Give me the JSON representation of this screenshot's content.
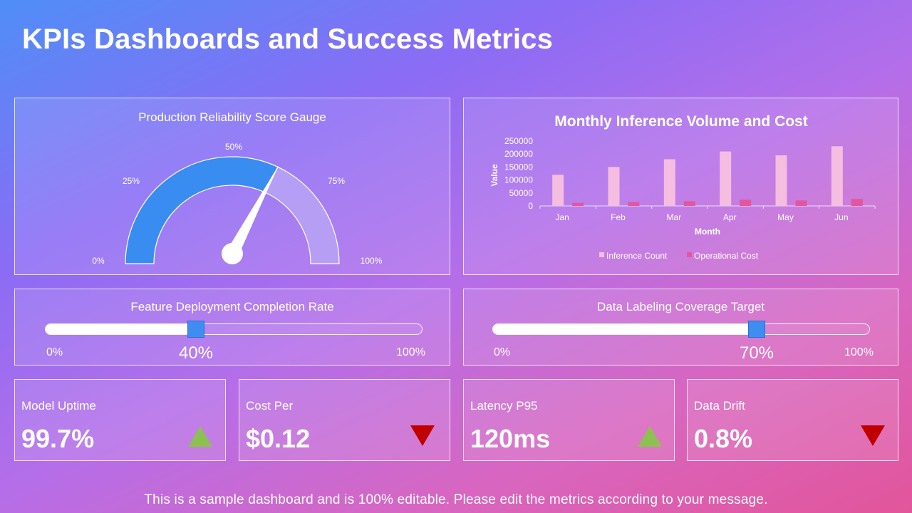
{
  "header": {
    "title": "KPIs Dashboards and Success Metrics"
  },
  "gauge": {
    "title": "Production Reliability Score Gauge",
    "labels": [
      "0%",
      "25%",
      "50%",
      "75%",
      "100%"
    ],
    "value_fraction": 0.64,
    "fill_color": "#3a8df0",
    "rest_color": "#b9a3f6"
  },
  "chart_data": {
    "type": "bar",
    "title": "Monthly Inference Volume and Cost",
    "xlabel": "Month",
    "ylabel": "Value",
    "categories": [
      "Jan",
      "Feb",
      "Mar",
      "Apr",
      "May",
      "Jun"
    ],
    "ylim": [
      0,
      250000
    ],
    "yticks": [
      "250000",
      "200000",
      "150000",
      "100000",
      "50000",
      "0"
    ],
    "legend_position": "bottom",
    "series": [
      {
        "name": "Inference Count",
        "values": [
          120000,
          150000,
          180000,
          210000,
          195000,
          230000
        ],
        "color": "#f5bde0"
      },
      {
        "name": "Operational Cost",
        "values": [
          12000,
          15000,
          18000,
          24000,
          21000,
          27000
        ],
        "color": "#e2569e"
      }
    ]
  },
  "sliders": [
    {
      "title": "Feature Deployment Completion Rate",
      "min_label": "0%",
      "max_label": "100%",
      "value_label": "40%",
      "fraction": 0.4
    },
    {
      "title": "Data Labeling Coverage Target",
      "min_label": "0%",
      "max_label": "100%",
      "value_label": "70%",
      "fraction": 0.7
    }
  ],
  "kpis": [
    {
      "label": "Model Uptime",
      "value": "99.7%",
      "trend": "up",
      "trend_color": "#8cc152"
    },
    {
      "label": "Cost Per",
      "value": "$0.12",
      "trend": "down",
      "trend_color": "#c00000"
    },
    {
      "label": "Latency P95",
      "value": "120ms",
      "trend": "up",
      "trend_color": "#8cc152"
    },
    {
      "label": "Data Drift",
      "value": "0.8%",
      "trend": "down",
      "trend_color": "#c00000"
    }
  ],
  "footer": {
    "text": "This is a sample dashboard and is 100% editable. Please edit the metrics according to your message."
  }
}
